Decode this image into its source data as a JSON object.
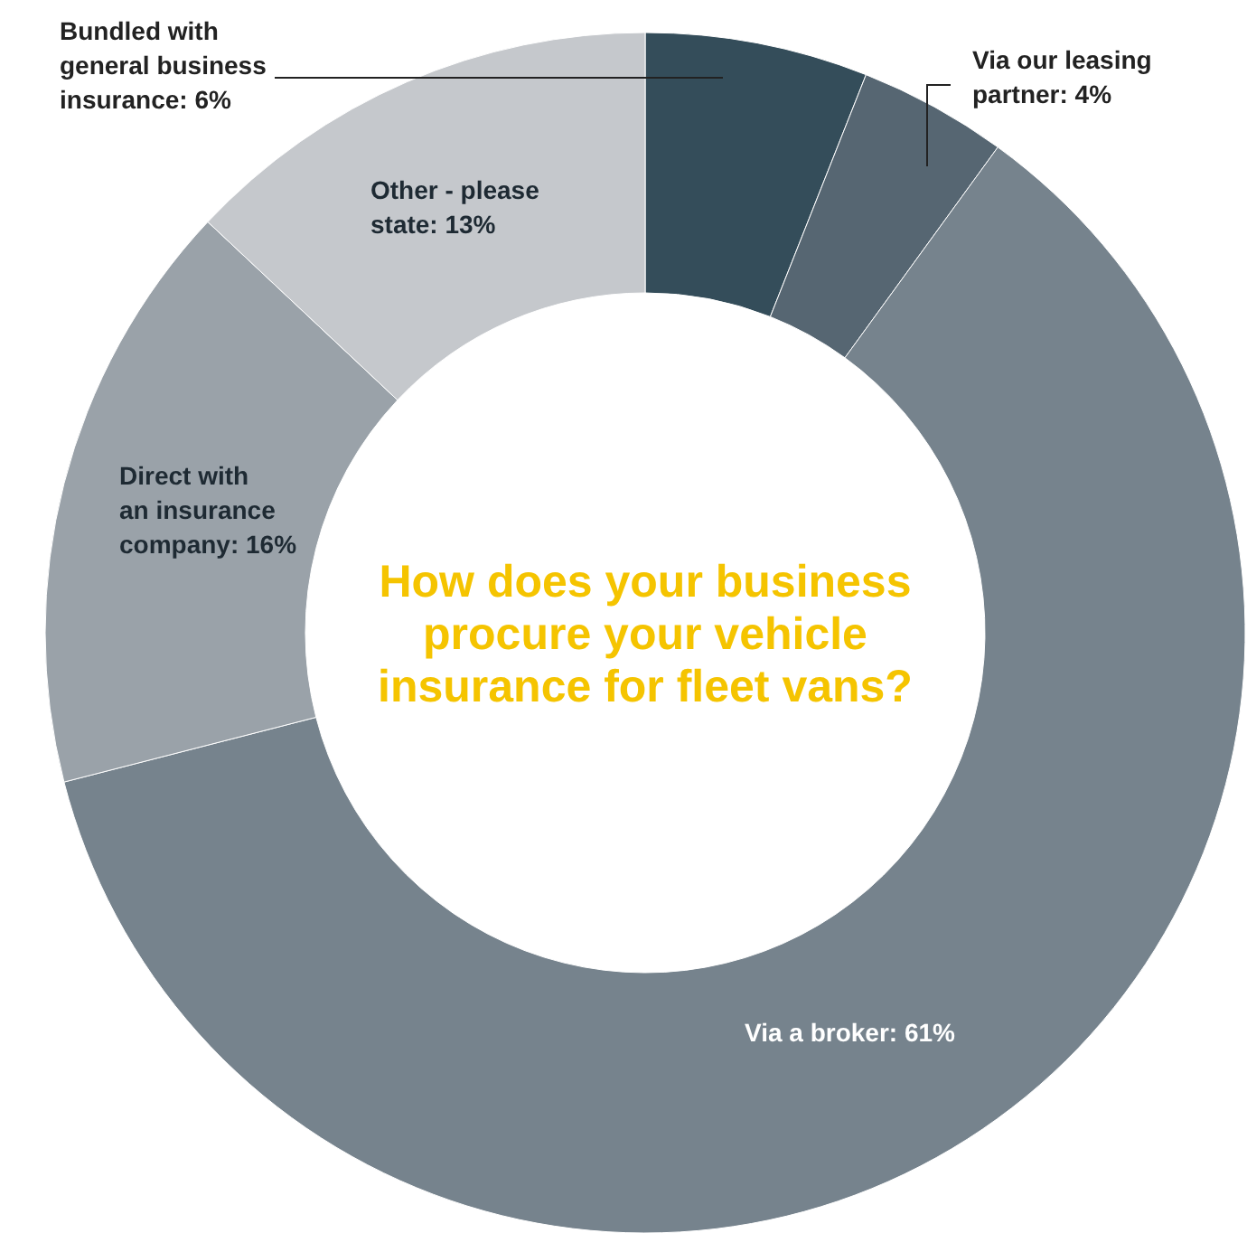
{
  "chart_data": {
    "type": "donut",
    "title": "How does your business procure your vehicle insurance for fleet vans?",
    "categories": [
      "Bundled with general business insurance",
      "Via our leasing partner",
      "Via a broker",
      "Direct with an insurance company",
      "Other - please state"
    ],
    "values": [
      6,
      4,
      61,
      16,
      13
    ],
    "value_labels": [
      "6%",
      "4%",
      "61%",
      "16%",
      "13%"
    ],
    "colors": [
      "#344d5a",
      "#566672",
      "#76838d",
      "#9aa2a9",
      "#c5c8cc"
    ]
  }
}
